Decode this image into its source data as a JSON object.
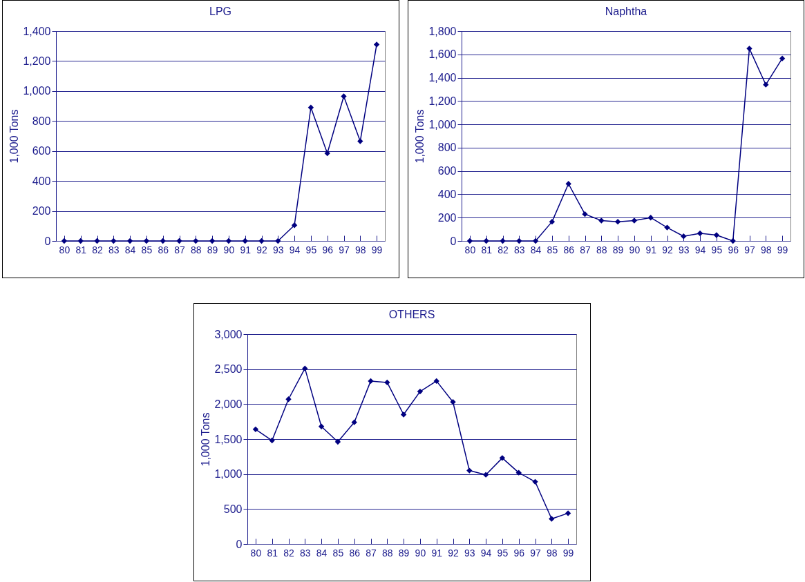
{
  "chart_data": [
    {
      "type": "line",
      "title": "LPG",
      "ylabel": "1,000 Tons",
      "categories": [
        "80",
        "81",
        "82",
        "83",
        "84",
        "85",
        "86",
        "87",
        "88",
        "89",
        "90",
        "91",
        "92",
        "93",
        "94",
        "95",
        "96",
        "97",
        "98",
        "99"
      ],
      "values": [
        0,
        0,
        0,
        0,
        0,
        0,
        0,
        0,
        0,
        0,
        0,
        0,
        0,
        0,
        105,
        890,
        585,
        965,
        665,
        1310
      ],
      "color": "#000080",
      "ylim": [
        0,
        1400
      ],
      "yticks": [
        0,
        200,
        400,
        600,
        800,
        {
          "value": 1000,
          "label": "1,000"
        },
        {
          "value": 1200,
          "label": "1,200"
        },
        {
          "value": 1400,
          "label": "1,400"
        }
      ],
      "grid": "y",
      "marker": "diamond"
    },
    {
      "type": "line",
      "title": "Naphtha",
      "ylabel": "1,000 Tons",
      "categories": [
        "80",
        "81",
        "82",
        "83",
        "84",
        "85",
        "86",
        "87",
        "88",
        "89",
        "90",
        "91",
        "92",
        "93",
        "94",
        "95",
        "96",
        "97",
        "98",
        "99"
      ],
      "values": [
        0,
        0,
        0,
        0,
        0,
        165,
        490,
        230,
        175,
        165,
        175,
        200,
        115,
        40,
        65,
        50,
        0,
        1650,
        1340,
        1565
      ],
      "color": "#000080",
      "ylim": [
        0,
        1800
      ],
      "yticks": [
        0,
        200,
        400,
        600,
        800,
        {
          "value": 1000,
          "label": "1,000"
        },
        {
          "value": 1200,
          "label": "1,200"
        },
        {
          "value": 1400,
          "label": "1,400"
        },
        {
          "value": 1600,
          "label": "1,600"
        },
        {
          "value": 1800,
          "label": "1,800"
        }
      ],
      "grid": "y",
      "marker": "diamond"
    },
    {
      "type": "line",
      "title": "OTHERS",
      "ylabel": "1,000 Tons",
      "categories": [
        "80",
        "81",
        "82",
        "83",
        "84",
        "85",
        "86",
        "87",
        "88",
        "89",
        "90",
        "91",
        "92",
        "93",
        "94",
        "95",
        "96",
        "97",
        "98",
        "99"
      ],
      "values": [
        1640,
        1480,
        2070,
        2510,
        1680,
        1460,
        1740,
        2330,
        2310,
        1850,
        2180,
        2330,
        2030,
        1050,
        990,
        1230,
        1020,
        890,
        360,
        440
      ],
      "color": "#000080",
      "ylim": [
        0,
        3000
      ],
      "yticks": [
        0,
        500,
        {
          "value": 1000,
          "label": "1,000"
        },
        {
          "value": 1500,
          "label": "1,500"
        },
        {
          "value": 2000,
          "label": "2,000"
        },
        {
          "value": 2500,
          "label": "2,500"
        },
        {
          "value": 3000,
          "label": "3,000"
        }
      ],
      "grid": "y",
      "marker": "diamond"
    }
  ]
}
